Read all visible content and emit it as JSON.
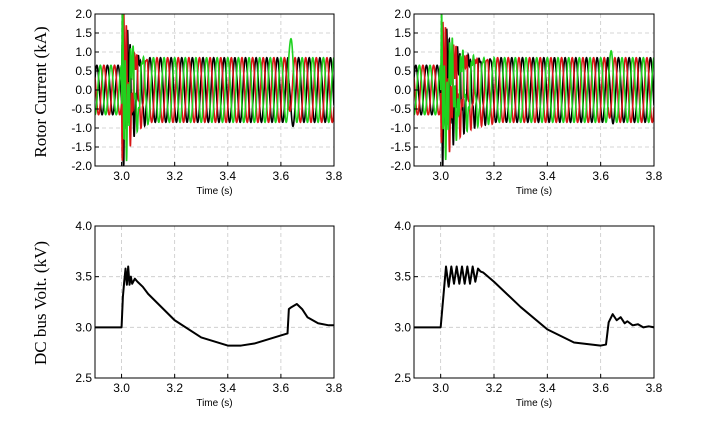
{
  "y_labels": {
    "top": "Rotor Current (kA)",
    "bottom": "DC bus Volt. (kV)"
  },
  "colors": {
    "phase_a": "#000000",
    "phase_b": "#d81515",
    "phase_c": "#1fd21f",
    "voltage": "#000000"
  },
  "chart_data": [
    {
      "type": "line",
      "xlabel": "Time (s)",
      "xlim": [
        2.9,
        3.8
      ],
      "xticks": [
        "3.0",
        "3.2",
        "3.4",
        "3.6",
        "3.8"
      ],
      "ylim": [
        -2.0,
        2.0
      ],
      "yticks": [
        "-2.0",
        "-1.5",
        "-1.0",
        "-0.5",
        "0.0",
        "0.5",
        "1.0",
        "1.5",
        "2.0"
      ],
      "grid": true,
      "frequency_hz": 25,
      "steady_amplitude": 0.65,
      "post_fault_amplitude": 0.85,
      "fault_time": 3.0,
      "fault_peak": 2.0,
      "disturbance_window": [
        3.0,
        3.1
      ],
      "disturbance_freq_hz": 100,
      "recovery_time": 3.63,
      "recovery_spike": 1.5,
      "series_phases": [
        "A",
        "B",
        "C"
      ]
    },
    {
      "type": "line",
      "xlabel": "Time (s)",
      "xlim": [
        2.9,
        3.8
      ],
      "xticks": [
        "3.0",
        "3.2",
        "3.4",
        "3.6",
        "3.8"
      ],
      "ylim": [
        -2.0,
        2.0
      ],
      "yticks": [
        "-2.0",
        "-1.5",
        "-1.0",
        "-0.5",
        "0.0",
        "0.5",
        "1.0",
        "1.5",
        "2.0"
      ],
      "grid": true,
      "frequency_hz": 25,
      "steady_amplitude": 0.65,
      "post_fault_amplitude": 0.85,
      "fault_time": 3.0,
      "fault_peak": 1.4,
      "disturbance_window": [
        3.0,
        3.2
      ],
      "disturbance_freq_hz": 100,
      "recovery_time": 3.63,
      "recovery_spike": 1.1,
      "series_phases": [
        "A",
        "B",
        "C"
      ]
    },
    {
      "type": "line",
      "xlabel": "Time (s)",
      "xlim": [
        2.9,
        3.8
      ],
      "xticks": [
        "3.0",
        "3.2",
        "3.4",
        "3.6",
        "3.8"
      ],
      "ylim": [
        2.5,
        4.0
      ],
      "yticks": [
        "2.5",
        "3.0",
        "3.5",
        "4.0"
      ],
      "grid": true,
      "series": [
        {
          "x": [
            2.9,
            3.0,
            3.005,
            3.01,
            3.015,
            3.02,
            3.025,
            3.03,
            3.035,
            3.04,
            3.05,
            3.06,
            3.08,
            3.1,
            3.2,
            3.3,
            3.4,
            3.45,
            3.5,
            3.6,
            3.625,
            3.63,
            3.64,
            3.66,
            3.68,
            3.7,
            3.74,
            3.78,
            3.8
          ],
          "y": [
            3.0,
            3.0,
            3.3,
            3.45,
            3.58,
            3.42,
            3.6,
            3.42,
            3.5,
            3.43,
            3.48,
            3.45,
            3.4,
            3.33,
            3.07,
            2.9,
            2.82,
            2.82,
            2.84,
            2.92,
            2.94,
            3.18,
            3.2,
            3.23,
            3.18,
            3.1,
            3.04,
            3.02,
            3.02
          ]
        }
      ]
    },
    {
      "type": "line",
      "xlabel": "Time (s)",
      "xlim": [
        2.9,
        3.8
      ],
      "xticks": [
        "3.0",
        "3.2",
        "3.4",
        "3.6",
        "3.8"
      ],
      "ylim": [
        2.5,
        4.0
      ],
      "yticks": [
        "2.5",
        "3.0",
        "3.5",
        "4.0"
      ],
      "grid": true,
      "series": [
        {
          "x": [
            2.9,
            3.0,
            3.01,
            3.02,
            3.03,
            3.04,
            3.05,
            3.06,
            3.07,
            3.08,
            3.09,
            3.1,
            3.11,
            3.12,
            3.13,
            3.14,
            3.15,
            3.16,
            3.2,
            3.3,
            3.4,
            3.5,
            3.6,
            3.62,
            3.63,
            3.645,
            3.66,
            3.675,
            3.69,
            3.7,
            3.72,
            3.74,
            3.76,
            3.78,
            3.8
          ],
          "y": [
            3.0,
            3.0,
            3.3,
            3.6,
            3.4,
            3.6,
            3.43,
            3.6,
            3.43,
            3.6,
            3.43,
            3.6,
            3.43,
            3.6,
            3.45,
            3.58,
            3.55,
            3.54,
            3.45,
            3.2,
            2.98,
            2.85,
            2.82,
            2.83,
            3.05,
            3.13,
            3.07,
            3.1,
            3.04,
            3.06,
            3.02,
            3.03,
            3.0,
            3.01,
            3.0
          ]
        }
      ]
    }
  ]
}
